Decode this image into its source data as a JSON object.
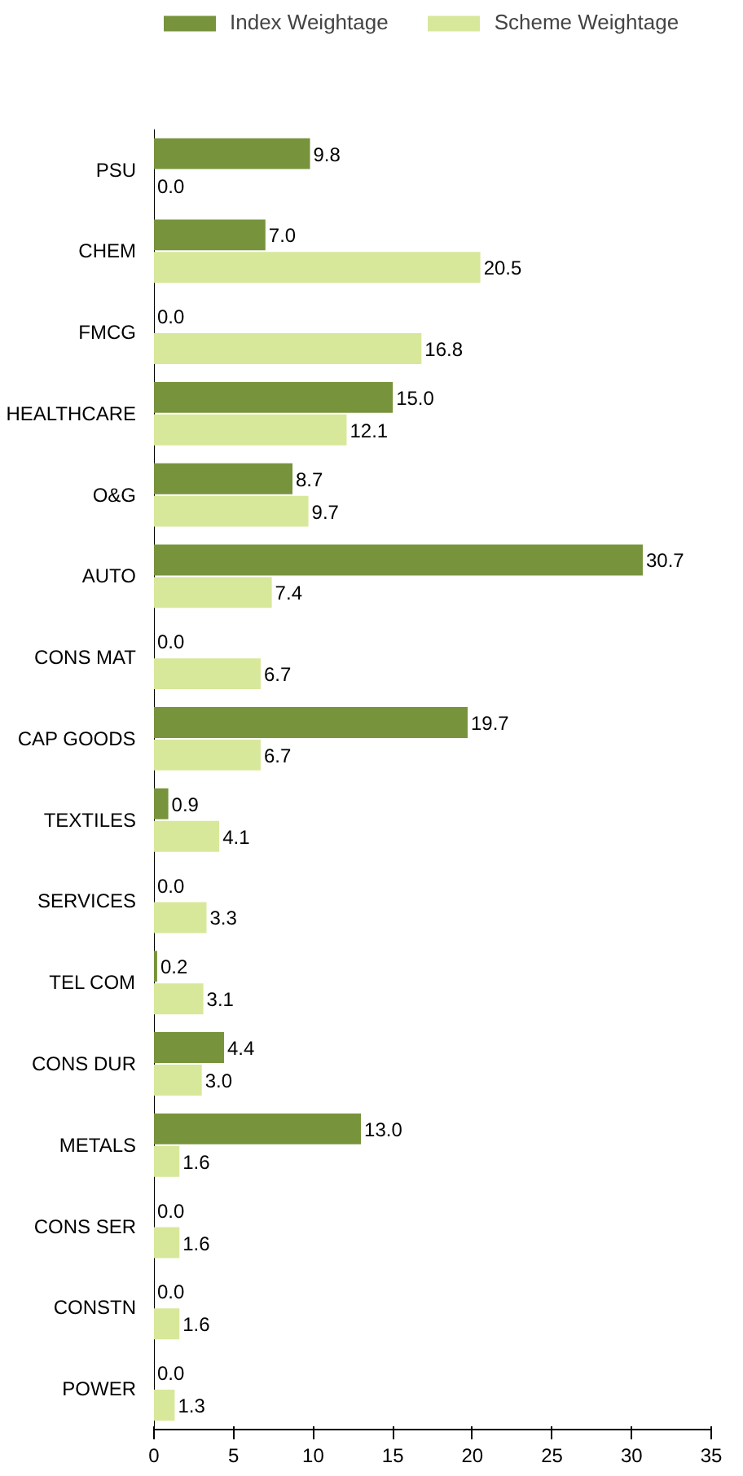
{
  "chart_data": {
    "type": "bar",
    "orientation": "horizontal",
    "categories": [
      "PSU",
      "CHEM",
      "FMCG",
      "HEALTHCARE",
      "O&G",
      "AUTO",
      "CONS MAT",
      "CAP GOODS",
      "TEXTILES",
      "SERVICES",
      "TEL COM",
      "CONS DUR",
      "METALS",
      "CONS SER",
      "CONSTN",
      "POWER"
    ],
    "series": [
      {
        "name": "Index Weightage",
        "color": "#77933c",
        "values": [
          9.8,
          7.0,
          0.0,
          15.0,
          8.7,
          30.7,
          0.0,
          19.7,
          0.9,
          0.0,
          0.2,
          4.4,
          13.0,
          0.0,
          0.0,
          0.0
        ],
        "value_labels": [
          "9.8",
          "7.0",
          "0.0",
          "15.0",
          "8.7",
          "30.7",
          "0.0",
          "19.7",
          "0.9",
          "0.0",
          "0.2",
          "4.4",
          "13.0",
          "0.0",
          "0.0",
          "0.0"
        ]
      },
      {
        "name": "Scheme Weightage",
        "color": "#d7e89a",
        "values": [
          0.0,
          20.5,
          16.8,
          12.1,
          9.7,
          7.4,
          6.7,
          6.7,
          4.1,
          3.3,
          3.1,
          3.0,
          1.6,
          1.6,
          1.6,
          1.3
        ],
        "value_labels": [
          "0.0",
          "20.5",
          "16.8",
          "12.1",
          "9.7",
          "7.4",
          "6.7",
          "6.7",
          "4.1",
          "3.3",
          "3.1",
          "3.0",
          "1.6",
          "1.6",
          "1.6",
          "1.3"
        ]
      }
    ],
    "xlim": [
      0,
      35
    ],
    "xticks": [
      0,
      5,
      10,
      15,
      20,
      25,
      30,
      35
    ],
    "data_labels": true,
    "legend": "top left",
    "grid": false
  }
}
